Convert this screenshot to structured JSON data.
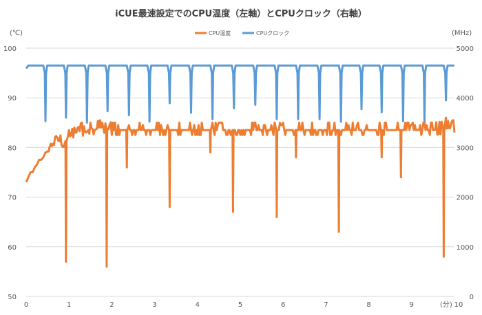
{
  "chart_data": {
    "type": "line",
    "title": "iCUE最速設定でのCPU温度（左軸）とCPUクロック（右軸）",
    "x_unit_label": "(分)",
    "y_left_unit_label": "(℃)",
    "y_right_unit_label": "(MHz)",
    "xlim": [
      0,
      10
    ],
    "ylim_left": [
      50,
      100
    ],
    "ylim_right": [
      0,
      5000
    ],
    "x_ticks": [
      "0",
      "1",
      "2",
      "3",
      "4",
      "5",
      "6",
      "7",
      "8",
      "9",
      "10"
    ],
    "y_left_ticks": [
      "50",
      "60",
      "70",
      "80",
      "90",
      "100"
    ],
    "y_right_ticks": [
      "0",
      "1000",
      "2000",
      "3000",
      "4000",
      "5000"
    ],
    "grid": true,
    "legend_position": "top",
    "series": [
      {
        "name": "CPU温度",
        "axis": "left",
        "color": "#ED7D31",
        "baseline": [
          [
            0.0,
            73
          ],
          [
            0.05,
            74
          ],
          [
            0.1,
            75
          ],
          [
            0.15,
            75
          ],
          [
            0.2,
            76
          ],
          [
            0.25,
            76.5
          ],
          [
            0.3,
            77.5
          ],
          [
            0.35,
            77.5
          ],
          [
            0.4,
            78
          ],
          [
            0.45,
            79
          ],
          [
            0.5,
            79
          ],
          [
            0.55,
            80
          ],
          [
            0.6,
            80
          ],
          [
            0.65,
            81
          ],
          [
            0.7,
            82
          ],
          [
            0.75,
            81
          ],
          [
            0.8,
            82
          ],
          [
            0.85,
            80
          ],
          [
            0.9,
            81
          ],
          [
            1.0,
            82
          ],
          [
            1.1,
            83
          ],
          [
            1.2,
            83
          ],
          [
            1.3,
            83.5
          ],
          [
            1.4,
            83
          ],
          [
            1.5,
            84
          ],
          [
            1.6,
            83.5
          ],
          [
            1.7,
            84
          ],
          [
            1.8,
            84
          ],
          [
            2.0,
            83.5
          ],
          [
            2.5,
            83.5
          ],
          [
            3.0,
            83.5
          ],
          [
            3.5,
            83.5
          ],
          [
            4.0,
            83.5
          ],
          [
            4.5,
            83.5
          ],
          [
            5.0,
            83.5
          ],
          [
            5.5,
            83.5
          ],
          [
            6.0,
            83.5
          ],
          [
            6.5,
            83.5
          ],
          [
            7.0,
            83.5
          ],
          [
            7.5,
            83.5
          ],
          [
            8.0,
            83.5
          ],
          [
            8.5,
            83.5
          ],
          [
            9.0,
            83.5
          ],
          [
            9.5,
            83.5
          ],
          [
            10.0,
            84
          ]
        ],
        "dips": [
          [
            0.93,
            57
          ],
          [
            1.88,
            56
          ],
          [
            2.35,
            76
          ],
          [
            3.35,
            68
          ],
          [
            4.3,
            79
          ],
          [
            4.83,
            67
          ],
          [
            5.85,
            66
          ],
          [
            6.3,
            78
          ],
          [
            7.3,
            63
          ],
          [
            8.3,
            78
          ],
          [
            8.75,
            74
          ],
          [
            9.75,
            58
          ]
        ]
      },
      {
        "name": "CPUクロック",
        "axis": "right",
        "color": "#5B9BD5",
        "baseline_value": 4650,
        "dips": [
          [
            0.45,
            3530
          ],
          [
            0.93,
            3600
          ],
          [
            1.42,
            3500
          ],
          [
            1.9,
            3730
          ],
          [
            2.4,
            3650
          ],
          [
            2.88,
            3520
          ],
          [
            3.35,
            3890
          ],
          [
            3.85,
            3700
          ],
          [
            4.35,
            3570
          ],
          [
            4.85,
            3790
          ],
          [
            5.35,
            3860
          ],
          [
            5.85,
            3570
          ],
          [
            6.35,
            3570
          ],
          [
            6.85,
            3570
          ],
          [
            7.35,
            3520
          ],
          [
            7.83,
            3770
          ],
          [
            8.3,
            3710
          ],
          [
            8.8,
            3530
          ],
          [
            9.3,
            3470
          ],
          [
            9.8,
            3950
          ]
        ]
      }
    ]
  }
}
